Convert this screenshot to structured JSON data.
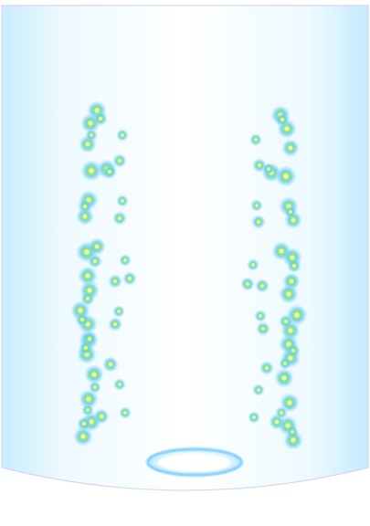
{
  "game": {
    "scene": "glowing-orb-field",
    "colors": {
      "background": "#ffffff",
      "panel_edge": "#c8ecff",
      "panel_mid": "#f6fdff",
      "panel_outline": "#d9d2f0",
      "orb_core": "#7ee03c",
      "orb_glow": "#62c8ff",
      "portal_ring": "#9fdcff"
    },
    "orbs": {
      "left_column_count": 44,
      "right_column_count": 41
    }
  }
}
